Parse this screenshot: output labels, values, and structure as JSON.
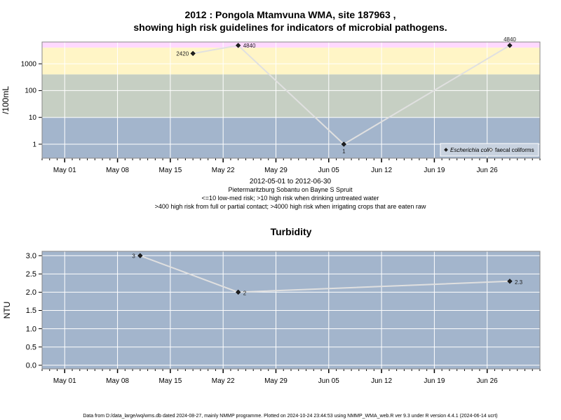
{
  "title_line1": "2012 : Pongola Mtamvuna WMA, site 187963 ,",
  "title_line2": "showing high risk guidelines for indicators of microbial pathogens.",
  "footer": "Data from D:/data_large/wq/wms.db dated 2024-08-27, mainly NMMP programme. Plotted on 2024-10-24 23:44:53 using NMMP_WMA_web.R ver 9.3 under R version 4.4.1 (2024-06-14 ucrt)",
  "colors": {
    "band_above_4000": "#ffd9ff",
    "band_400_4000": "#fff5c6",
    "band_10_400": "#c6cfc3",
    "band_below_10": "#a3b5cc",
    "panel_bg": "#a3b5cc",
    "grid": "#ffffff",
    "line": "#e0e0e0",
    "point": "#222222"
  },
  "chart_data": [
    {
      "type": "line",
      "ylabel": "/100mL",
      "y_scale": "log",
      "ylim": [
        0.3,
        6500
      ],
      "y_ticks": [
        "1",
        "10",
        "100",
        "1000"
      ],
      "y_tick_values": [
        1,
        10,
        100,
        1000
      ],
      "x_ticks": [
        "May 01",
        "May 08",
        "May 15",
        "May 22",
        "May 29",
        "Jun 05",
        "Jun 12",
        "Jun 19",
        "Jun 26"
      ],
      "x_tick_dates": [
        "2012-05-01",
        "2012-05-08",
        "2012-05-15",
        "2012-05-22",
        "2012-05-29",
        "2012-06-05",
        "2012-06-12",
        "2012-06-19",
        "2012-06-26"
      ],
      "xlim": [
        "2012-04-28",
        "2012-07-03"
      ],
      "guideline_bands": [
        400,
        4000,
        10
      ],
      "series": [
        {
          "name": "Escherichia coli",
          "x": [
            "2012-05-18",
            "2012-05-24",
            "2012-06-07",
            "2012-06-29"
          ],
          "y": [
            2420,
            4840,
            1,
            4840
          ],
          "labels": [
            "2420",
            "4840",
            "1",
            "4840"
          ]
        }
      ],
      "legend": {
        "position": "bottom-right",
        "entries": [
          {
            "label": "Escherichia coli",
            "marker": "filled-diamond",
            "italic": true
          },
          {
            "label": "faecal coliforms",
            "marker": "open-diamond",
            "italic": false
          }
        ]
      },
      "caption": [
        "2012-05-01 to 2012-06-30",
        "Pietermaritzburg Sobantu on Bayne S Spruit",
        "<=10 low-med risk; >10 high risk when drinking untreated water",
        ">400 high risk from full or partial contact; >4000 high risk when irrigating crops that are eaten raw"
      ]
    },
    {
      "type": "line",
      "title": "Turbidity",
      "ylabel": "NTU",
      "ylim": [
        -0.1,
        3.12
      ],
      "y_ticks": [
        "0.0",
        "0.5",
        "1.0",
        "1.5",
        "2.0",
        "2.5",
        "3.0"
      ],
      "y_tick_values": [
        0,
        0.5,
        1,
        1.5,
        2,
        2.5,
        3
      ],
      "x_ticks": [
        "May 01",
        "May 08",
        "May 15",
        "May 22",
        "May 29",
        "Jun 05",
        "Jun 12",
        "Jun 19",
        "Jun 26"
      ],
      "x_tick_dates": [
        "2012-05-01",
        "2012-05-08",
        "2012-05-15",
        "2012-05-22",
        "2012-05-29",
        "2012-06-05",
        "2012-06-12",
        "2012-06-19",
        "2012-06-26"
      ],
      "xlim": [
        "2012-04-28",
        "2012-07-03"
      ],
      "series": [
        {
          "x": [
            "2012-05-11",
            "2012-05-24",
            "2012-06-29"
          ],
          "y": [
            3,
            2,
            2.3
          ],
          "labels": [
            "3",
            "2",
            "2.3"
          ]
        }
      ]
    }
  ]
}
